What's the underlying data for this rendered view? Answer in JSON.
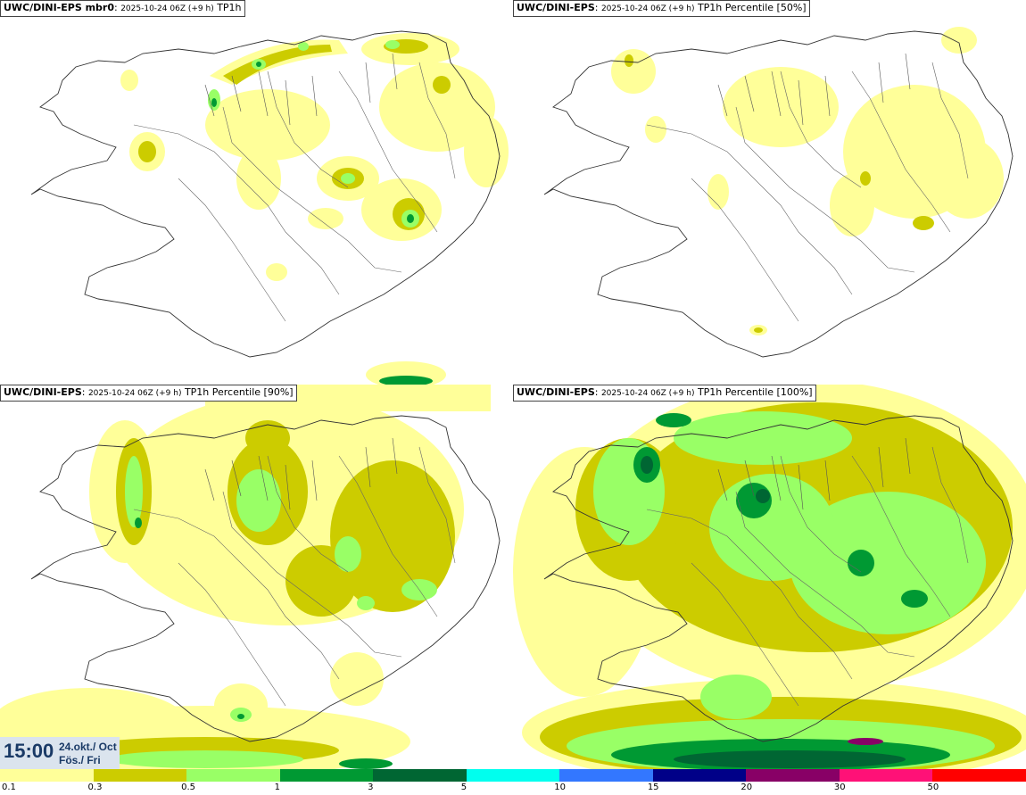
{
  "panels": [
    {
      "model": "UWC/DINI-EPS mbr0",
      "run": "2025-10-24 06Z (+9 h)",
      "field": "TP1h"
    },
    {
      "model": "UWC/DINI-EPS",
      "run": "2025-10-24 06Z (+9 h)",
      "field": "TP1h Percentile [50%]"
    },
    {
      "model": "UWC/DINI-EPS",
      "run": "2025-10-24 06Z (+9 h)",
      "field": "TP1h Percentile [90%]"
    },
    {
      "model": "UWC/DINI-EPS",
      "run": "2025-10-24 06Z (+9 h)",
      "field": "TP1h Percentile [100%]"
    }
  ],
  "timestamp": {
    "time": "15:00",
    "date": "24.okt./ Oct",
    "day": "Fös./ Fri"
  },
  "colorbar": {
    "labels": [
      "0.1",
      "0.3",
      "0.5",
      "1",
      "3",
      "5",
      "10",
      "15",
      "20",
      "30",
      "50"
    ],
    "colors": [
      "#ffff99",
      "#cccc00",
      "#99ff66",
      "#009933",
      "#006633",
      "#00ffee",
      "#3377ff",
      "#000088",
      "#880066",
      "#ff1177",
      "#ff0000"
    ]
  },
  "palette": {
    "light": "#ffff99",
    "olive": "#cccc00",
    "lightgreen": "#99ff66",
    "green": "#009933",
    "darkgreen": "#006633"
  }
}
